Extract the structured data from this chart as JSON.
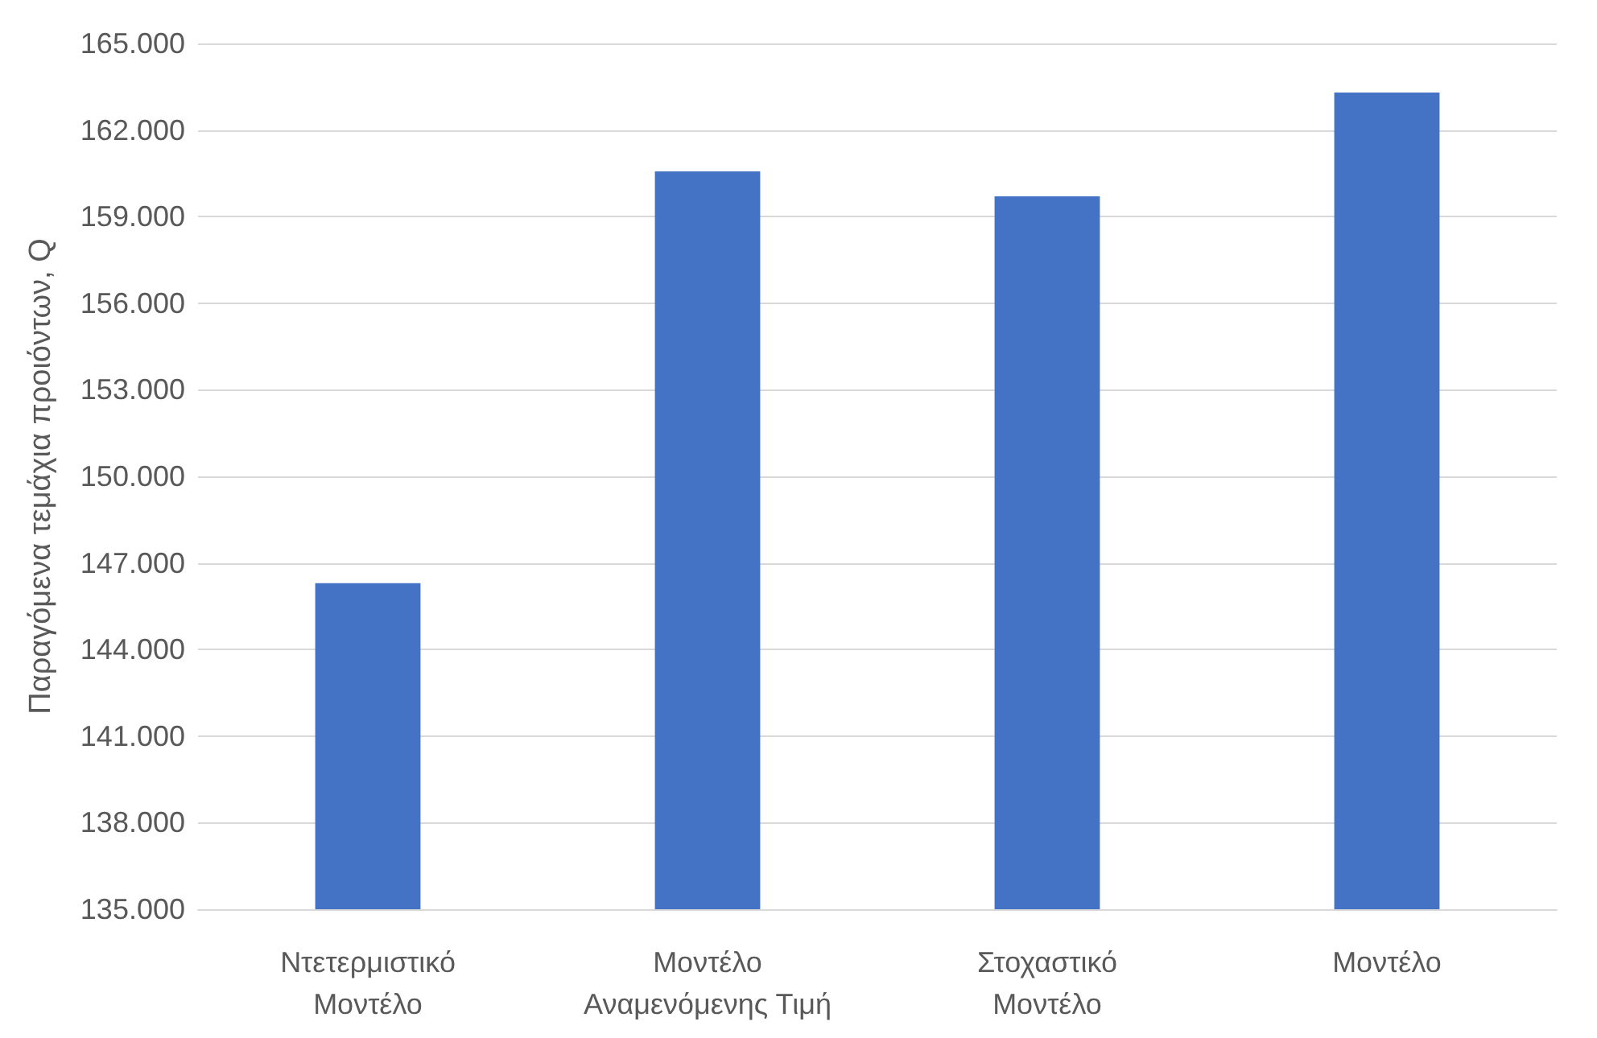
{
  "chart_data": {
    "type": "bar",
    "ylabel": "Παραγόμενα τεμάχια προιόντων, Q",
    "categories": [
      "Ντετερμιστικό Μοντέλο",
      "Μοντέλο Αναμενόμενης Τιμή",
      "Στοχαστικό Μοντέλο",
      "Μοντέλο"
    ],
    "values": [
      146300,
      160570,
      159700,
      163300
    ],
    "color": "#4472c4",
    "ylim": [
      135000,
      165000
    ],
    "yticks": [
      {
        "value": 135000,
        "label": "135.000"
      },
      {
        "value": 138000,
        "label": "138.000"
      },
      {
        "value": 141000,
        "label": "141.000"
      },
      {
        "value": 144000,
        "label": "144.000"
      },
      {
        "value": 147000,
        "label": "147.000"
      },
      {
        "value": 150000,
        "label": "150.000"
      },
      {
        "value": 153000,
        "label": "153.000"
      },
      {
        "value": 156000,
        "label": "156.000"
      },
      {
        "value": 159000,
        "label": "159.000"
      },
      {
        "value": 162000,
        "label": "162.000"
      },
      {
        "value": 165000,
        "label": "165.000"
      }
    ],
    "grid": "y"
  }
}
